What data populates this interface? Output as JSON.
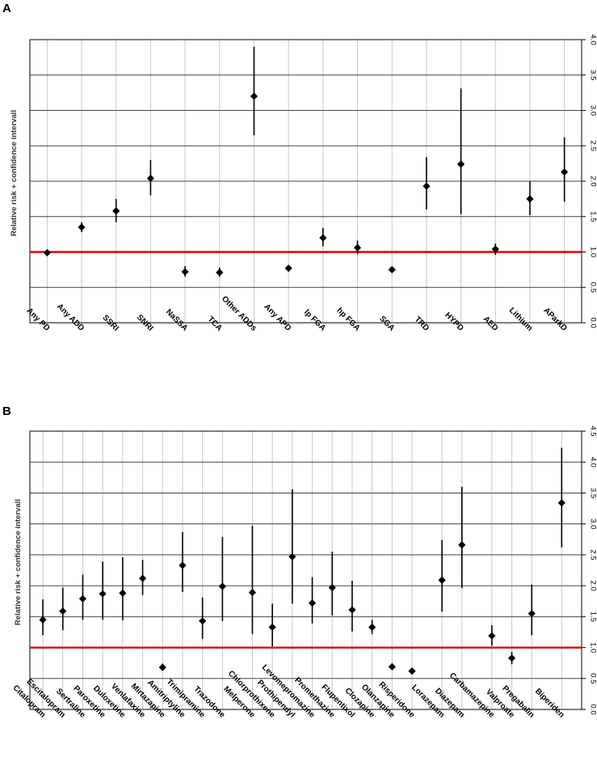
{
  "chart_data": [
    {
      "panel": "A",
      "type": "scatter",
      "subtype": "point estimate with confidence interval",
      "title": "",
      "xlabel": "",
      "ylabel": "Relative risk + confidence intervall",
      "yaxis_position": "right",
      "ylim": [
        0,
        4.0
      ],
      "yticks": [
        "0.0",
        "0.5",
        "1.0",
        "1.5",
        "2.0",
        "2.5",
        "3.0",
        "3.5",
        "4.0"
      ],
      "reference_line": 1.0,
      "reference_color": "#e00000",
      "grid": true,
      "categories": [
        "Any PD",
        "Any ADD",
        "SSRI",
        "SNRI",
        "NaSSA",
        "TCA",
        "Other ADDs",
        "Any APD",
        "lp FGA",
        "hp FGA",
        "SGA",
        "TRD",
        "HYPD",
        "AED",
        "Lithium",
        "AParkD"
      ],
      "series": [
        {
          "name": "Relative risk",
          "values": [
            0.99,
            1.35,
            1.58,
            2.04,
            0.72,
            0.71,
            3.2,
            0.77,
            1.2,
            1.06,
            0.75,
            1.93,
            2.24,
            1.04,
            1.75,
            2.13
          ],
          "ci_low": [
            0.97,
            1.28,
            1.42,
            1.8,
            0.65,
            0.65,
            2.65,
            0.74,
            1.08,
            0.97,
            0.72,
            1.6,
            1.53,
            0.96,
            1.52,
            1.71
          ],
          "ci_high": [
            1.01,
            1.42,
            1.75,
            2.3,
            0.8,
            0.78,
            3.9,
            0.8,
            1.34,
            1.16,
            0.78,
            2.34,
            3.31,
            1.12,
            2.0,
            2.62
          ]
        }
      ]
    },
    {
      "panel": "B",
      "type": "scatter",
      "subtype": "point estimate with confidence interval",
      "title": "",
      "xlabel": "",
      "ylabel": "Relative risk + confidence intervall",
      "yaxis_position": "right",
      "ylim": [
        0,
        4.5
      ],
      "yticks": [
        "0.0",
        "0.5",
        "1.0",
        "1.5",
        "2.0",
        "2.5",
        "3.0",
        "3.5",
        "4.0",
        "4.5"
      ],
      "reference_line": 1.0,
      "reference_color": "#e00000",
      "grid": true,
      "categories": [
        "Citalopram",
        "Escitalopram",
        "Sertraline",
        "Paroxetine",
        "Duloxetine",
        "Venlafaxine",
        "Mirtazapine",
        "Amitriptyline",
        "Trimipramine",
        "Trazodone",
        "Melperone",
        "Chlorprothixene",
        "Prothipendyl",
        "Levomepromazine",
        "Promethazine",
        "Flupentixol",
        "Clozapine",
        "Olanzapine",
        "Risperidone",
        "Lorazepam",
        "Diazepam",
        "Carbamazepine",
        "Valproate",
        "Pregabalin",
        "Biperiden"
      ],
      "x": [
        1,
        2,
        3,
        4,
        5,
        6,
        7,
        8,
        9,
        10,
        11.5,
        12.5,
        13.5,
        14.5,
        15.5,
        16.5,
        17.5,
        18.5,
        19.5,
        21,
        22,
        23.5,
        24.5,
        25.5,
        27
      ],
      "xlim": [
        0.35,
        28.0
      ],
      "series": [
        {
          "name": "Relative risk",
          "values": [
            1.45,
            1.59,
            1.79,
            1.87,
            1.88,
            2.12,
            0.68,
            2.33,
            1.43,
            1.99,
            1.89,
            1.33,
            2.47,
            1.72,
            1.97,
            1.61,
            1.33,
            0.69,
            0.62,
            2.09,
            2.66,
            1.19,
            0.83,
            1.55,
            3.34
          ],
          "ci_low": [
            1.2,
            1.28,
            1.45,
            1.45,
            1.44,
            1.85,
            0.63,
            1.9,
            1.14,
            1.43,
            1.22,
            1.02,
            1.71,
            1.39,
            1.52,
            1.26,
            1.22,
            0.66,
            0.59,
            1.58,
            1.96,
            1.03,
            0.73,
            1.2,
            2.62
          ],
          "ci_high": [
            1.78,
            1.97,
            2.18,
            2.39,
            2.46,
            2.42,
            0.74,
            2.87,
            1.81,
            2.79,
            2.97,
            1.71,
            3.56,
            2.14,
            2.55,
            2.08,
            1.45,
            0.72,
            0.65,
            2.74,
            3.6,
            1.36,
            0.93,
            2.02,
            4.23
          ]
        }
      ]
    }
  ]
}
